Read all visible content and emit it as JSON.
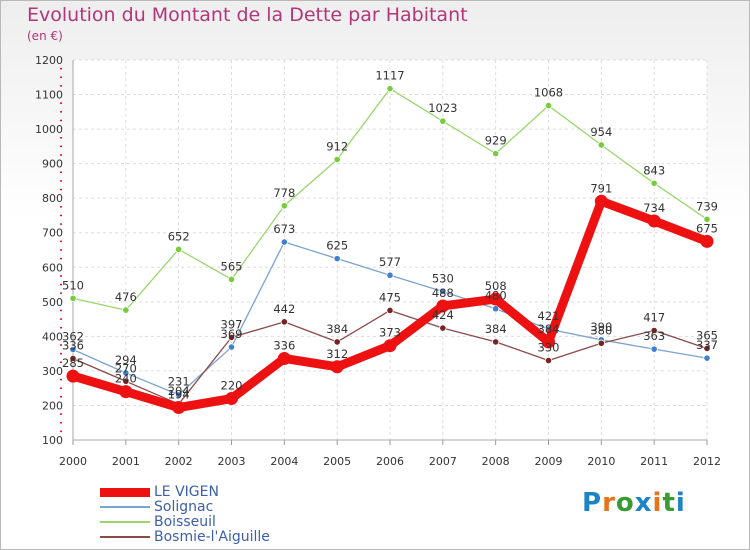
{
  "header": {
    "title": "Evolution du Montant de la Dette par Habitant",
    "unit": "(en €)"
  },
  "brand": {
    "logo_text": "Proxiti",
    "letters": [
      "P",
      "r",
      "o",
      "x",
      "i",
      "t",
      "i"
    ],
    "letter_colors": [
      "#1d83c5",
      "#e8741a",
      "#3a9b35",
      "#1d83c5",
      "#e8741a",
      "#3a9b35",
      "#1d83c5"
    ]
  },
  "chart_data": {
    "type": "line",
    "title": "Evolution du Montant de la Dette par Habitant",
    "subtitle": "(en €)",
    "x": [
      "2000",
      "2001",
      "2002",
      "2003",
      "2004",
      "2005",
      "2006",
      "2007",
      "2008",
      "2009",
      "2010",
      "2011",
      "2012"
    ],
    "ylim": [
      100,
      1200
    ],
    "yticks": [
      100,
      200,
      300,
      400,
      500,
      600,
      700,
      800,
      900,
      1000,
      1100,
      1200
    ],
    "grid": true,
    "legend": "bottom-left",
    "series": [
      {
        "name": "LE VIGEN",
        "color": "#ee1111",
        "point_color": "#ee1111",
        "values": [
          285,
          240,
          194,
          220,
          336,
          312,
          373,
          488,
          508,
          384,
          791,
          734,
          675
        ]
      },
      {
        "name": "Solignac",
        "color": "#7ba3cf",
        "point_color": "#3f7fcf",
        "values": [
          362,
          294,
          231,
          369,
          673,
          625,
          577,
          530,
          480,
          421,
          390,
          363,
          337
        ]
      },
      {
        "name": "Boisseuil",
        "color": "#99d66e",
        "point_color": "#77cc3c",
        "values": [
          510,
          476,
          652,
          565,
          778,
          912,
          1117,
          1023,
          929,
          1068,
          954,
          843,
          739
        ]
      },
      {
        "name": "Bosmie-l'Aiguille",
        "color": "#8a4a4a",
        "point_color": "#7a2222",
        "values": [
          336,
          270,
          204,
          397,
          442,
          384,
          475,
          424,
          384,
          330,
          380,
          417,
          365
        ]
      }
    ]
  }
}
